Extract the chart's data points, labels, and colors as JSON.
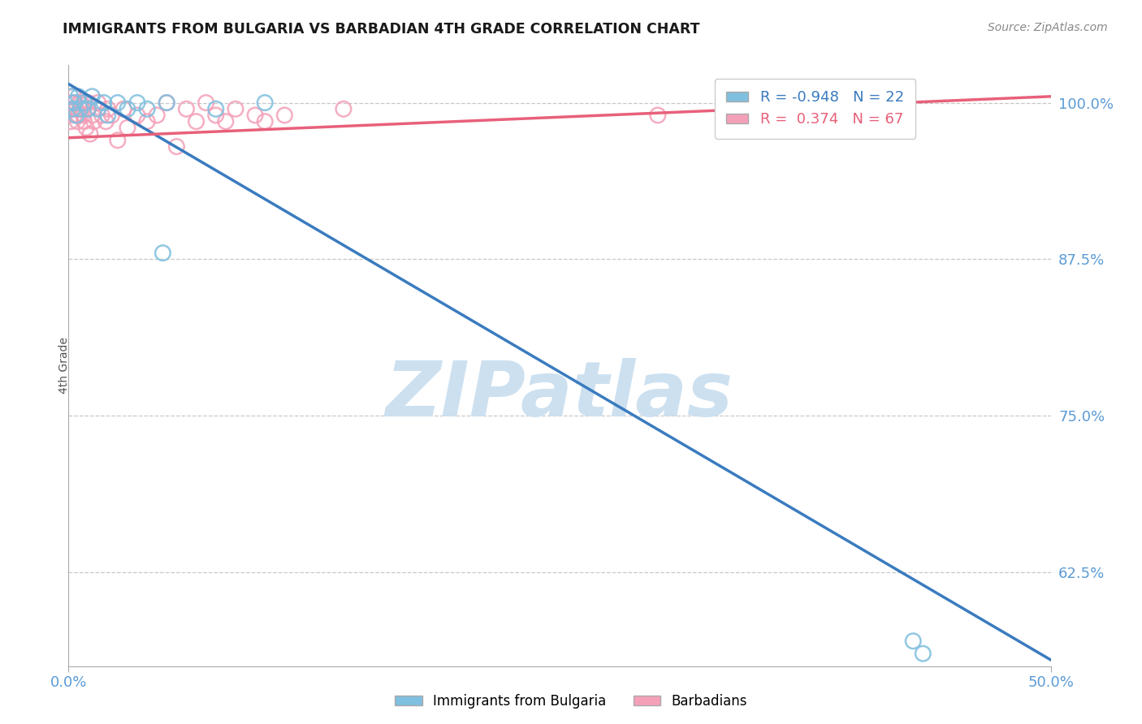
{
  "title": "IMMIGRANTS FROM BULGARIA VS BARBADIAN 4TH GRADE CORRELATION CHART",
  "source_text": "Source: ZipAtlas.com",
  "ylabel": "4th Grade",
  "watermark": "ZIPatlas",
  "xlim": [
    0.0,
    50.0
  ],
  "ylim": [
    55.0,
    103.0
  ],
  "yticks": [
    62.5,
    75.0,
    87.5,
    100.0
  ],
  "ytick_labels": [
    "62.5%",
    "75.0%",
    "87.5%",
    "100.0%"
  ],
  "blue_R": -0.948,
  "blue_N": 22,
  "pink_R": 0.374,
  "pink_N": 67,
  "blue_label": "Immigrants from Bulgaria",
  "pink_label": "Barbadians",
  "blue_color": "#7fbfdf",
  "pink_color": "#f4a0b8",
  "blue_line_color": "#3a7bbf",
  "pink_line_color": "#e8607a",
  "grid_color": "#c8c8c8",
  "title_color": "#1a1a1a",
  "axis_color": "#5b9bd5",
  "watermark_color": "#cce0f0",
  "background_color": "#ffffff",
  "blue_line_x0": 0.0,
  "blue_line_y0": 101.5,
  "blue_line_x1": 50.0,
  "blue_line_y1": 55.5,
  "pink_line_x0": 0.0,
  "pink_line_y0": 97.2,
  "pink_line_x1": 50.0,
  "pink_line_y1": 100.5,
  "blue_scatter_x": [
    0.1,
    0.2,
    0.3,
    0.4,
    0.5,
    0.6,
    0.8,
    1.0,
    1.2,
    1.5,
    1.8,
    2.0,
    2.5,
    3.0,
    3.5,
    4.0,
    4.8,
    5.0,
    7.5,
    10.0,
    43.0,
    43.5
  ],
  "blue_scatter_y": [
    100.5,
    99.5,
    100.0,
    99.0,
    100.5,
    99.5,
    100.0,
    99.5,
    100.5,
    99.5,
    100.0,
    99.0,
    100.0,
    99.5,
    100.0,
    99.5,
    88.0,
    100.0,
    99.5,
    100.0,
    57.0,
    56.0
  ],
  "pink_scatter_x": [
    0.05,
    0.1,
    0.15,
    0.2,
    0.25,
    0.3,
    0.35,
    0.4,
    0.45,
    0.5,
    0.55,
    0.6,
    0.65,
    0.7,
    0.75,
    0.8,
    0.85,
    0.9,
    0.95,
    1.0,
    1.1,
    1.2,
    1.3,
    1.5,
    1.7,
    1.9,
    2.0,
    2.2,
    2.5,
    2.8,
    3.0,
    3.5,
    4.0,
    4.5,
    5.0,
    5.5,
    6.0,
    6.5,
    7.0,
    7.5,
    8.0,
    8.5,
    9.5,
    10.0,
    11.0,
    14.0,
    30.0,
    35.0
  ],
  "pink_scatter_y": [
    99.5,
    98.5,
    100.0,
    99.5,
    100.5,
    99.0,
    100.0,
    99.5,
    98.5,
    99.0,
    100.0,
    99.5,
    100.0,
    99.5,
    99.0,
    98.5,
    100.0,
    98.0,
    99.5,
    100.0,
    97.5,
    99.0,
    98.5,
    100.0,
    99.0,
    98.5,
    99.5,
    99.0,
    97.0,
    99.5,
    98.0,
    99.0,
    98.5,
    99.0,
    100.0,
    96.5,
    99.5,
    98.5,
    100.0,
    99.0,
    98.5,
    99.5,
    99.0,
    98.5,
    99.0,
    99.5,
    99.0,
    100.5
  ]
}
